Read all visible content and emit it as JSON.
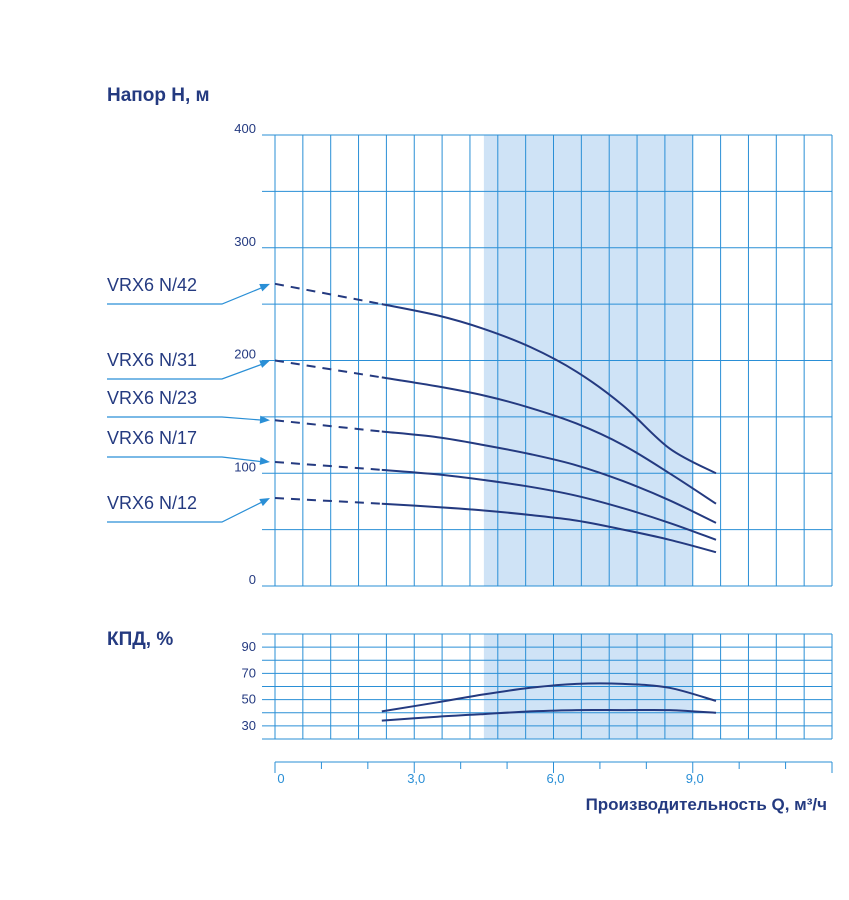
{
  "colors": {
    "grid": "#2a8fd6",
    "band": "#cfe3f6",
    "curve": "#243a80",
    "text": "#243a80",
    "x_ticks": "#2a8fd6"
  },
  "chart_data": [
    {
      "type": "line",
      "title": "",
      "ylabel": "Напор H, м",
      "xlabel": "Производительность Q, м³/ч",
      "xlim": [
        0,
        12
      ],
      "ylim": [
        0,
        400
      ],
      "y_ticks": [
        "0",
        "100",
        "200",
        "300",
        "400"
      ],
      "recommended_range": [
        4.5,
        9.0
      ],
      "grid": true,
      "series": [
        {
          "name": "VRX6 N/42",
          "dashed": {
            "x": [
              0,
              2.3
            ],
            "y": [
              268,
              250
            ]
          },
          "solid": {
            "x": [
              2.3,
              3.5,
              4.5,
              5.5,
              6.5,
              7.5,
              8.5,
              9.5
            ],
            "y": [
              250,
              240,
              228,
              212,
              190,
              160,
              122,
              100
            ]
          }
        },
        {
          "name": "VRX6 N/31",
          "dashed": {
            "x": [
              0,
              2.3
            ],
            "y": [
              200,
              185
            ]
          },
          "solid": {
            "x": [
              2.3,
              3.5,
              4.5,
              5.5,
              6.5,
              7.5,
              8.5,
              9.5
            ],
            "y": [
              185,
              177,
              169,
              158,
              144,
              125,
              100,
              73
            ]
          }
        },
        {
          "name": "VRX6 N/23",
          "dashed": {
            "x": [
              0,
              2.3
            ],
            "y": [
              147,
              137
            ]
          },
          "solid": {
            "x": [
              2.3,
              3.5,
              4.5,
              5.5,
              6.5,
              7.5,
              8.5,
              9.5
            ],
            "y": [
              137,
              132,
              125,
              117,
              107,
              93,
              76,
              56
            ]
          }
        },
        {
          "name": "VRX6 N/17",
          "dashed": {
            "x": [
              0,
              2.3
            ],
            "y": [
              110,
              103
            ]
          },
          "solid": {
            "x": [
              2.3,
              3.5,
              4.5,
              5.5,
              6.5,
              7.5,
              8.5,
              9.5
            ],
            "y": [
              103,
              99,
              94,
              88,
              80,
              69,
              56,
              41
            ]
          }
        },
        {
          "name": "VRX6 N/12",
          "dashed": {
            "x": [
              0,
              2.3
            ],
            "y": [
              78,
              73
            ]
          },
          "solid": {
            "x": [
              2.3,
              3.5,
              4.5,
              5.5,
              6.5,
              7.5,
              8.5,
              9.5
            ],
            "y": [
              73,
              70,
              67,
              63,
              58,
              50,
              41,
              30
            ]
          }
        }
      ]
    },
    {
      "type": "line",
      "title": "",
      "ylabel": "КПД, %",
      "xlabel": "Производительность Q, м³/ч",
      "xlim": [
        0,
        12
      ],
      "ylim": [
        20,
        100
      ],
      "y_ticks": [
        "30",
        "50",
        "70",
        "90"
      ],
      "x_ticks": [
        "0",
        "3,0",
        "6,0",
        "9,0"
      ],
      "x_tick_values": [
        0,
        3,
        6,
        9
      ],
      "recommended_range": [
        4.5,
        9.0
      ],
      "grid": true,
      "series": [
        {
          "x": [
            2.3,
            3.5,
            4.5,
            5.5,
            6.5,
            7.5,
            8.5,
            9.5
          ],
          "y": [
            41,
            48,
            54,
            59,
            62,
            62,
            59,
            49
          ]
        },
        {
          "x": [
            2.3,
            3.5,
            4.5,
            5.5,
            6.5,
            7.5,
            8.5,
            9.5
          ],
          "y": [
            34,
            37,
            39,
            41,
            42,
            42,
            42,
            40
          ]
        }
      ]
    }
  ]
}
